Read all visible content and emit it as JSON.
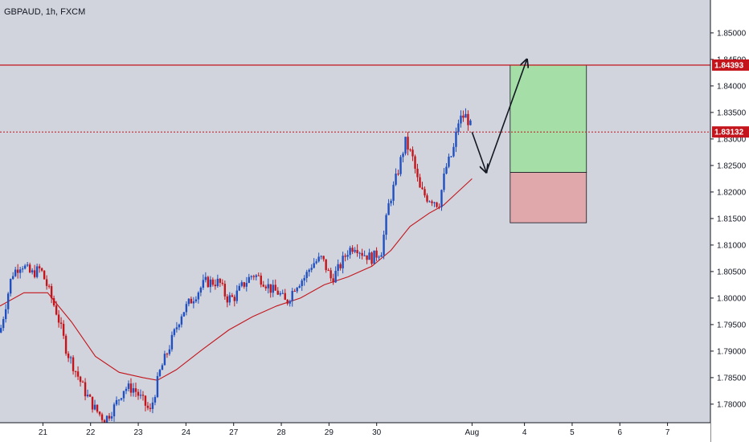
{
  "header": {
    "symbol_label": "GBPAUD, 1h, FXCM"
  },
  "colors": {
    "background": "#d1d4dc",
    "axis_background": "#ffffff",
    "candle_up": "#1f4fc1",
    "candle_down": "#c4151c",
    "moving_average": "#c4151c",
    "level_line": "#c4151c",
    "target_zone": "#a5dea6",
    "stop_zone": "#e0a8aa",
    "arrow": "#131722",
    "price_tag": "#c4151c"
  },
  "chart_data": {
    "type": "candlestick",
    "symbol": "GBPAUD",
    "timeframe": "1h",
    "source": "FXCM",
    "y_axis": {
      "ticks": [
        "1.85000",
        "1.84500",
        "1.84000",
        "1.83500",
        "1.83000",
        "1.82500",
        "1.82000",
        "1.81500",
        "1.81000",
        "1.80500",
        "1.80000",
        "1.79500",
        "1.79000",
        "1.78500",
        "1.78000"
      ],
      "ylim": [
        1.7765,
        1.8562
      ]
    },
    "x_axis": {
      "ticks": [
        {
          "label": "21",
          "t": 0.9
        },
        {
          "label": "22",
          "t": 1.9
        },
        {
          "label": "23",
          "t": 2.9
        },
        {
          "label": "24",
          "t": 3.9
        },
        {
          "label": "27",
          "t": 4.9
        },
        {
          "label": "28",
          "t": 5.9
        },
        {
          "label": "29",
          "t": 6.9
        },
        {
          "label": "30",
          "t": 7.9
        },
        {
          "label": "Aug",
          "t": 9.9
        },
        {
          "label": "4",
          "t": 11.0
        },
        {
          "label": "5",
          "t": 12.0
        },
        {
          "label": "6",
          "t": 13.0
        },
        {
          "label": "7",
          "t": 14.0
        }
      ],
      "xlim": [
        0,
        14.9
      ]
    },
    "price_path": [
      [
        0.0,
        1.7935
      ],
      [
        0.25,
        1.8045
      ],
      [
        0.45,
        1.8065
      ],
      [
        0.65,
        1.8045
      ],
      [
        0.85,
        1.8055
      ],
      [
        1.0,
        1.802
      ],
      [
        1.2,
        1.797
      ],
      [
        1.4,
        1.79
      ],
      [
        1.6,
        1.786
      ],
      [
        1.8,
        1.782
      ],
      [
        2.0,
        1.779
      ],
      [
        2.2,
        1.777
      ],
      [
        2.4,
        1.7795
      ],
      [
        2.6,
        1.783
      ],
      [
        2.8,
        1.783
      ],
      [
        3.0,
        1.7805
      ],
      [
        3.15,
        1.7785
      ],
      [
        3.35,
        1.786
      ],
      [
        3.6,
        1.792
      ],
      [
        3.8,
        1.797
      ],
      [
        4.0,
        1.7995
      ],
      [
        4.3,
        1.803
      ],
      [
        4.6,
        1.803
      ],
      [
        4.75,
        1.8
      ],
      [
        4.9,
        1.8
      ],
      [
        5.1,
        1.8025
      ],
      [
        5.3,
        1.8045
      ],
      [
        5.5,
        1.8035
      ],
      [
        5.7,
        1.8015
      ],
      [
        5.85,
        1.801
      ],
      [
        6.0,
        1.799
      ],
      [
        6.2,
        1.8025
      ],
      [
        6.4,
        1.804
      ],
      [
        6.55,
        1.8065
      ],
      [
        6.75,
        1.8075
      ],
      [
        6.95,
        1.8035
      ],
      [
        7.1,
        1.8055
      ],
      [
        7.3,
        1.809
      ],
      [
        7.45,
        1.81
      ],
      [
        7.6,
        1.8085
      ],
      [
        7.8,
        1.8075
      ],
      [
        8.0,
        1.809
      ],
      [
        8.15,
        1.8175
      ],
      [
        8.35,
        1.824
      ],
      [
        8.5,
        1.8295
      ],
      [
        8.65,
        1.8265
      ],
      [
        8.8,
        1.8205
      ],
      [
        8.95,
        1.819
      ],
      [
        9.1,
        1.8185
      ],
      [
        9.2,
        1.8175
      ],
      [
        9.35,
        1.8245
      ],
      [
        9.5,
        1.8275
      ],
      [
        9.62,
        1.8335
      ],
      [
        9.75,
        1.8345
      ],
      [
        9.85,
        1.833
      ],
      [
        9.9,
        1.8313
      ]
    ],
    "moving_average": [
      [
        0.0,
        1.7985
      ],
      [
        0.5,
        1.801
      ],
      [
        1.0,
        1.801
      ],
      [
        1.5,
        1.7955
      ],
      [
        2.0,
        1.789
      ],
      [
        2.5,
        1.786
      ],
      [
        3.0,
        1.785
      ],
      [
        3.3,
        1.7845
      ],
      [
        3.7,
        1.7865
      ],
      [
        4.2,
        1.79
      ],
      [
        4.8,
        1.794
      ],
      [
        5.3,
        1.7965
      ],
      [
        5.8,
        1.7985
      ],
      [
        6.3,
        1.8
      ],
      [
        6.8,
        1.8025
      ],
      [
        7.3,
        1.804
      ],
      [
        7.8,
        1.806
      ],
      [
        8.2,
        1.809
      ],
      [
        8.6,
        1.8135
      ],
      [
        9.0,
        1.816
      ],
      [
        9.3,
        1.8175
      ],
      [
        9.6,
        1.82
      ],
      [
        9.9,
        1.8225
      ]
    ],
    "levels": [
      {
        "name": "target",
        "price": 1.84393,
        "label": "1.84393",
        "style": "solid"
      },
      {
        "name": "current",
        "price": 1.83132,
        "label": "1.83132",
        "style": "dotted"
      }
    ],
    "trade_setup": {
      "entry": 1.8237,
      "target": 1.84393,
      "stop": 1.8142,
      "start_t": 10.7,
      "end_t": 12.3
    },
    "projection_arrow": [
      [
        9.9,
        1.8313
      ],
      [
        10.2,
        1.8237
      ],
      [
        11.05,
        1.845
      ]
    ]
  }
}
